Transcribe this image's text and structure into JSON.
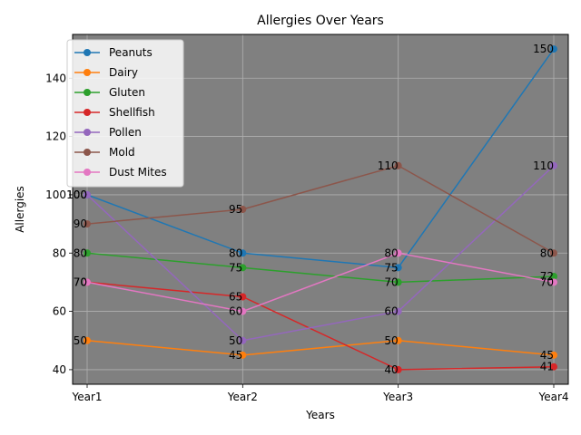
{
  "chart_data": {
    "type": "line",
    "title": "Allergies Over Years",
    "xlabel": "Years",
    "ylabel": "Allergies",
    "categories": [
      "Year1",
      "Year2",
      "Year3",
      "Year4"
    ],
    "ylim": [
      35,
      155
    ],
    "yticks": [
      40,
      60,
      80,
      100,
      120,
      140
    ],
    "grid": true,
    "plot_background": "#808080",
    "legend_position": "top-left",
    "series": [
      {
        "name": "Peanuts",
        "color": "#1f77b4",
        "values": [
          100,
          80,
          75,
          150
        ],
        "labels": [
          "100",
          "80",
          "75",
          "150"
        ]
      },
      {
        "name": "Dairy",
        "color": "#ff7f0e",
        "values": [
          50,
          45,
          50,
          45
        ],
        "labels": [
          "50",
          "45",
          "50",
          "45"
        ]
      },
      {
        "name": "Gluten",
        "color": "#2ca02c",
        "values": [
          80,
          75,
          70,
          72
        ],
        "labels": [
          "80",
          "75",
          "70",
          "72"
        ]
      },
      {
        "name": "Shellfish",
        "color": "#d62728",
        "values": [
          70,
          65,
          40,
          41
        ],
        "labels": [
          "70",
          "65",
          "40",
          "41"
        ]
      },
      {
        "name": "Pollen",
        "color": "#9467bd",
        "values": [
          100,
          50,
          60,
          110
        ],
        "labels": [
          "100",
          "50",
          "60",
          "110"
        ]
      },
      {
        "name": "Mold",
        "color": "#8c564b",
        "values": [
          90,
          95,
          110,
          80
        ],
        "labels": [
          "90",
          "95",
          "110",
          "80"
        ]
      },
      {
        "name": "Dust Mites",
        "color": "#e377c2",
        "values": [
          70,
          60,
          80,
          70
        ],
        "labels": [
          "70",
          "60",
          "80",
          "70"
        ]
      }
    ]
  }
}
